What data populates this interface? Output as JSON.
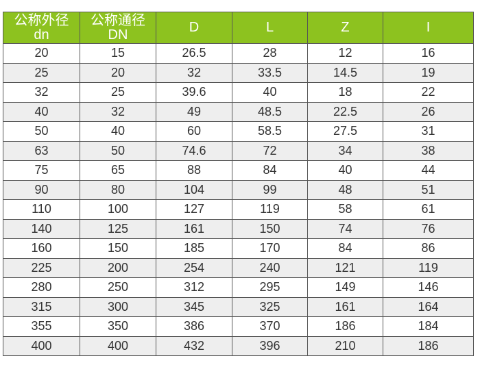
{
  "colors": {
    "header_bg": "#8dc21f",
    "alt_row_bg": "#eeeeee"
  },
  "headers": [
    {
      "line1": "公称外径",
      "line2": "dn"
    },
    {
      "line1": "公称通径",
      "line2": "DN"
    },
    {
      "line1": "D",
      "line2": ""
    },
    {
      "line1": "L",
      "line2": ""
    },
    {
      "line1": "Z",
      "line2": ""
    },
    {
      "line1": "I",
      "line2": ""
    }
  ],
  "rows": [
    [
      "20",
      "15",
      "26.5",
      "28",
      "12",
      "16"
    ],
    [
      "25",
      "20",
      "32",
      "33.5",
      "14.5",
      "19"
    ],
    [
      "32",
      "25",
      "39.6",
      "40",
      "18",
      "22"
    ],
    [
      "40",
      "32",
      "49",
      "48.5",
      "22.5",
      "26"
    ],
    [
      "50",
      "40",
      "60",
      "58.5",
      "27.5",
      "31"
    ],
    [
      "63",
      "50",
      "74.6",
      "72",
      "34",
      "38"
    ],
    [
      "75",
      "65",
      "88",
      "84",
      "40",
      "44"
    ],
    [
      "90",
      "80",
      "104",
      "99",
      "48",
      "51"
    ],
    [
      "110",
      "100",
      "127",
      "119",
      "58",
      "61"
    ],
    [
      "140",
      "125",
      "161",
      "150",
      "74",
      "76"
    ],
    [
      "160",
      "150",
      "185",
      "170",
      "84",
      "86"
    ],
    [
      "225",
      "200",
      "254",
      "240",
      "121",
      "119"
    ],
    [
      "280",
      "250",
      "312",
      "295",
      "149",
      "146"
    ],
    [
      "315",
      "300",
      "345",
      "325",
      "161",
      "164"
    ],
    [
      "355",
      "350",
      "386",
      "370",
      "186",
      "184"
    ],
    [
      "400",
      "400",
      "432",
      "396",
      "210",
      "186"
    ]
  ]
}
